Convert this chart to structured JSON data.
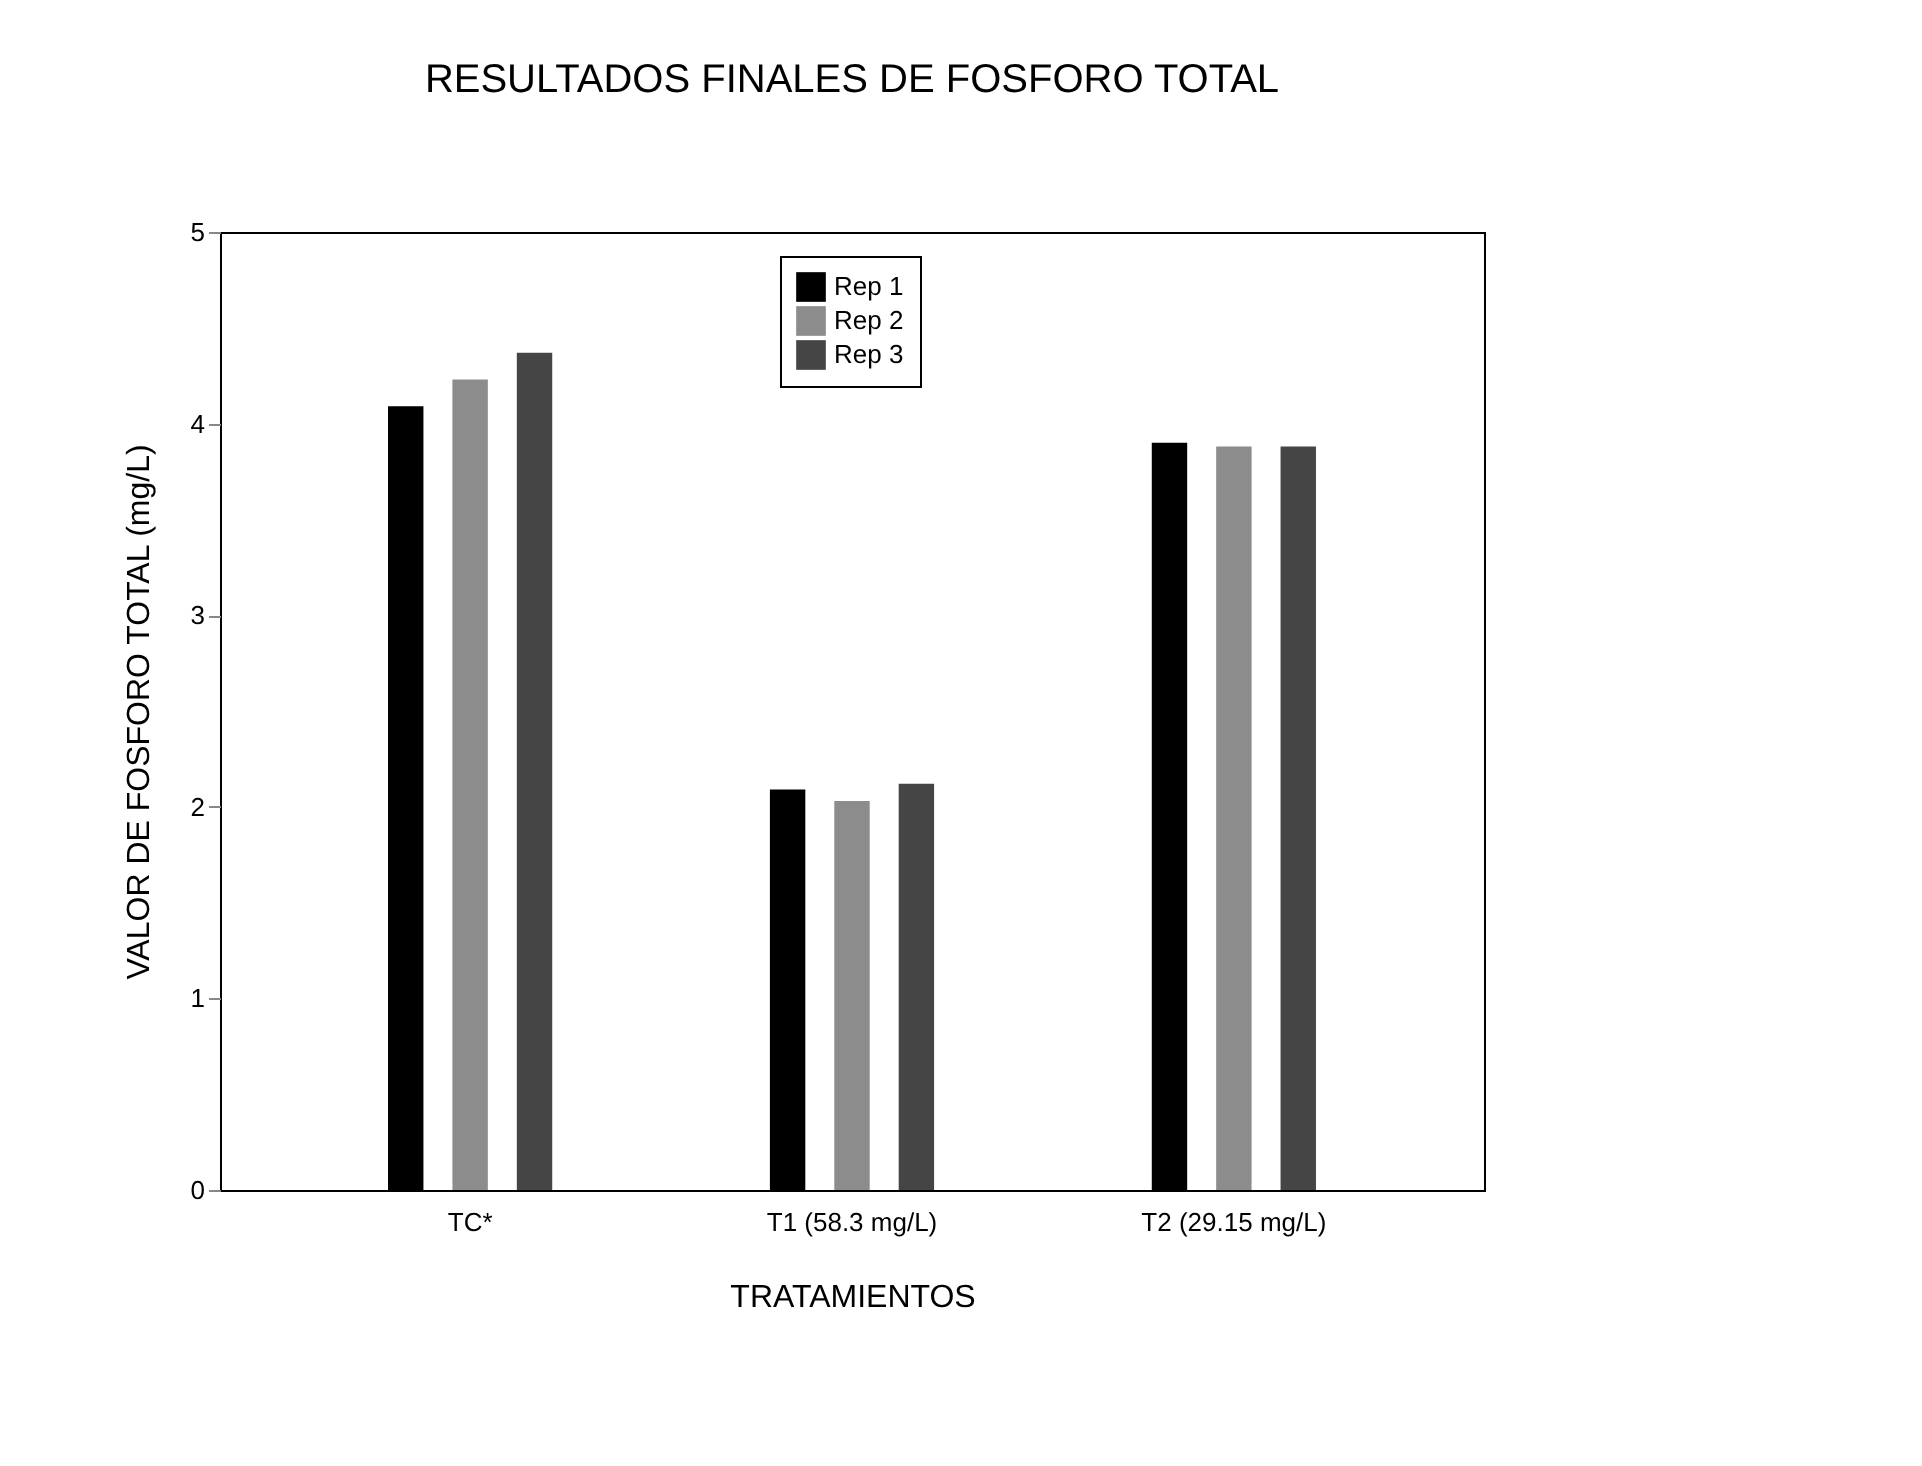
{
  "chart_data": {
    "type": "bar",
    "title": "RESULTADOS FINALES DE FOSFORO TOTAL",
    "xlabel": "TRATAMIENTOS",
    "ylabel": "VALOR DE FOSFORO TOTAL  (mg/L)",
    "categories": [
      "TC*",
      "T1 (58.3 mg/L)",
      "T2 (29.15 mg/L)"
    ],
    "series": [
      {
        "name": "Rep 1",
        "color": "#000000",
        "values": [
          4.09,
          2.09,
          3.9
        ]
      },
      {
        "name": "Rep 2",
        "color": "#8c8c8c",
        "values": [
          4.23,
          2.03,
          3.88
        ]
      },
      {
        "name": "Rep 3",
        "color": "#454545",
        "values": [
          4.37,
          2.12,
          3.88
        ]
      }
    ],
    "ylim": [
      0,
      5
    ],
    "yticks": [
      0,
      1,
      2,
      3,
      4,
      5
    ],
    "grid": false,
    "legend": "top"
  }
}
